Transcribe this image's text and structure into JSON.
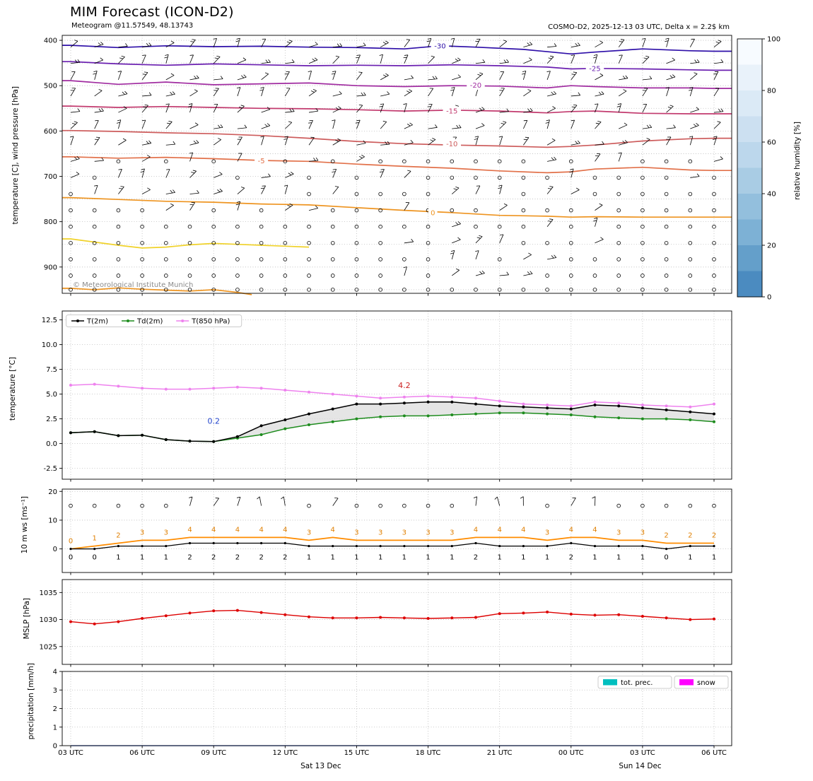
{
  "header": {
    "title": "MIM Forecast (ICON-D2)",
    "subtitle": "Meteogram @11.57549, 48.13743",
    "run_info": "COSMO-D2, 2025-12-13 03 UTC, Delta x = 2.2$ km"
  },
  "copyright": "© Meteorological Institute Munich",
  "time_axis": {
    "hours": [
      "03",
      "04",
      "05",
      "06",
      "07",
      "08",
      "09",
      "10",
      "11",
      "12",
      "13",
      "14",
      "15",
      "16",
      "17",
      "18",
      "19",
      "20",
      "21",
      "22",
      "23",
      "00",
      "01",
      "02",
      "03",
      "04",
      "05",
      "06"
    ],
    "tick_labels": [
      "03 UTC",
      "06 UTC",
      "09 UTC",
      "12 UTC",
      "15 UTC",
      "18 UTC",
      "21 UTC",
      "00 UTC",
      "03 UTC",
      "06 UTC"
    ],
    "date_labels": [
      {
        "text": "Sat 13 Dec",
        "at_index": 10.5
      },
      {
        "text": "Sun 14 Dec",
        "at_index": 23.9
      }
    ]
  },
  "chart_data": [
    {
      "id": "upper_air",
      "type": "heatmap",
      "ylabel": "temperature [C], wind pressure [hPa]",
      "yticks": [
        400,
        500,
        600,
        700,
        800,
        900
      ],
      "ytick_labels": [
        "400",
        "500",
        "600",
        "700",
        "800",
        "900"
      ],
      "ylim": [
        389,
        958
      ],
      "grid": true,
      "colorbar": {
        "label": "relative humidity [%]",
        "ticks": [
          0,
          20,
          40,
          60,
          80,
          100
        ],
        "tick_labels": [
          "0",
          "20",
          "40",
          "60",
          "80",
          "100"
        ],
        "colors_top_to_bottom": [
          "#f7fbff",
          "#e9f2fa",
          "#dbeaf6",
          "#cce0f1",
          "#bcd7ec",
          "#a9cce4",
          "#93bfdd",
          "#7db1d5",
          "#649fca",
          "#4b8bc0"
        ]
      },
      "contours": [
        {
          "level": -30,
          "label": "-30",
          "color": "#2e0fa8",
          "extend": "both",
          "label_at": [
            15.5,
            412
          ],
          "points": [
            [
              0,
              411
            ],
            [
              2,
              416
            ],
            [
              4,
              412
            ],
            [
              6,
              414
            ],
            [
              8,
              413
            ],
            [
              10,
              415
            ],
            [
              12,
              416
            ],
            [
              14,
              419
            ],
            [
              15.5,
              412
            ],
            [
              17,
              415
            ],
            [
              19,
              420
            ],
            [
              21,
              430
            ],
            [
              22,
              426
            ],
            [
              24,
              419
            ],
            [
              26,
              423
            ],
            [
              27,
              424
            ]
          ]
        },
        {
          "level": -25,
          "label": "-25",
          "color": "#6a1fb0",
          "extend": "both",
          "label_at": [
            22,
            462
          ],
          "points": [
            [
              0,
              447
            ],
            [
              2,
              452
            ],
            [
              4,
              455
            ],
            [
              6,
              452
            ],
            [
              8,
              454
            ],
            [
              10,
              456
            ],
            [
              12,
              455
            ],
            [
              14,
              456
            ],
            [
              16,
              454
            ],
            [
              18,
              456
            ],
            [
              20,
              459
            ],
            [
              21,
              463
            ],
            [
              22,
              462
            ],
            [
              24,
              463
            ],
            [
              26,
              465
            ],
            [
              27,
              466
            ]
          ]
        },
        {
          "level": -20,
          "label": "-20",
          "color": "#a02ba0",
          "extend": "both",
          "label_at": [
            17,
            499
          ],
          "points": [
            [
              0,
              489
            ],
            [
              2,
              497
            ],
            [
              4,
              492
            ],
            [
              6,
              498
            ],
            [
              8,
              496
            ],
            [
              10,
              494
            ],
            [
              12,
              500
            ],
            [
              14,
              502
            ],
            [
              16,
              500
            ],
            [
              18,
              501
            ],
            [
              20,
              505
            ],
            [
              21,
              500
            ],
            [
              22,
              502
            ],
            [
              24,
              505
            ],
            [
              26,
              505
            ],
            [
              27,
              506
            ]
          ]
        },
        {
          "level": -15,
          "label": "-15",
          "color": "#c23a6e",
          "extend": "both",
          "label_at": [
            16,
            556
          ],
          "points": [
            [
              0,
              545
            ],
            [
              2,
              548
            ],
            [
              4,
              546
            ],
            [
              6,
              548
            ],
            [
              8,
              550
            ],
            [
              10,
              551
            ],
            [
              12,
              553
            ],
            [
              14,
              556
            ],
            [
              16,
              554
            ],
            [
              18,
              556
            ],
            [
              20,
              560
            ],
            [
              21,
              557
            ],
            [
              22,
              556
            ],
            [
              24,
              561
            ],
            [
              26,
              562
            ],
            [
              27,
              562
            ]
          ]
        },
        {
          "level": -10,
          "label": "-10",
          "color": "#cd5c5c",
          "extend": "both",
          "label_at": [
            16,
            628
          ],
          "points": [
            [
              0,
              599
            ],
            [
              2,
              601
            ],
            [
              4,
              604
            ],
            [
              6,
              606
            ],
            [
              8,
              610
            ],
            [
              10,
              616
            ],
            [
              12,
              623
            ],
            [
              14,
              628
            ],
            [
              16,
              631
            ],
            [
              18,
              633
            ],
            [
              20,
              636
            ],
            [
              21,
              634
            ],
            [
              22,
              631
            ],
            [
              24,
              622
            ],
            [
              26,
              617
            ],
            [
              27,
              616
            ]
          ]
        },
        {
          "level": -5,
          "label": "-5",
          "color": "#e2714a",
          "extend": "both",
          "label_at": [
            8,
            666
          ],
          "points": [
            [
              0,
              657
            ],
            [
              2,
              660
            ],
            [
              4,
              658
            ],
            [
              6,
              661
            ],
            [
              8,
              665
            ],
            [
              10,
              667
            ],
            [
              12,
              673
            ],
            [
              14,
              678
            ],
            [
              16,
              682
            ],
            [
              18,
              688
            ],
            [
              20,
              692
            ],
            [
              21,
              690
            ],
            [
              22,
              684
            ],
            [
              24,
              680
            ],
            [
              26,
              686
            ],
            [
              27,
              687
            ]
          ]
        },
        {
          "level": 0,
          "label": "0",
          "color": "#ee9420",
          "extend": "both",
          "label_at": [
            15.2,
            780
          ],
          "points": [
            [
              0,
              747
            ],
            [
              2,
              751
            ],
            [
              4,
              755
            ],
            [
              6,
              757
            ],
            [
              8,
              761
            ],
            [
              10,
              763
            ],
            [
              12,
              769
            ],
            [
              14,
              775
            ],
            [
              16,
              780
            ],
            [
              18,
              786
            ],
            [
              20,
              788
            ],
            [
              21,
              790
            ],
            [
              22,
              789
            ],
            [
              24,
              790
            ],
            [
              26,
              790
            ],
            [
              27,
              790
            ]
          ]
        },
        {
          "level": 5,
          "label": null,
          "color": "#f0d22a",
          "extend": "left",
          "label_at": null,
          "points": [
            [
              0,
              838
            ],
            [
              1,
              845
            ],
            [
              2,
              852
            ],
            [
              3,
              858
            ],
            [
              4,
              856
            ],
            [
              5,
              851
            ],
            [
              6,
              848
            ],
            [
              7,
              850
            ],
            [
              8,
              852
            ],
            [
              9,
              854
            ],
            [
              10,
              856
            ]
          ]
        },
        {
          "level": 0,
          "label": null,
          "color": "#ee9420",
          "extend": "left",
          "label_at": null,
          "points": [
            [
              0,
              947
            ],
            [
              1,
              950
            ],
            [
              2,
              946
            ],
            [
              3,
              949
            ],
            [
              4,
              951
            ],
            [
              5,
              953
            ],
            [
              6,
              950
            ],
            [
              7,
              956
            ],
            [
              7.6,
              961
            ]
          ]
        }
      ],
      "barb_rows_hpa": [
        415,
        451,
        487,
        523,
        559,
        595,
        631,
        667,
        703,
        739,
        775,
        811,
        847,
        883,
        919,
        950
      ]
    },
    {
      "id": "temperature",
      "type": "line",
      "ylabel": "temperature [°C]",
      "ylim": [
        -3.6,
        13.4
      ],
      "yticks": [
        -2.5,
        0,
        2.5,
        5,
        7.5,
        10,
        12.5
      ],
      "ytick_labels": [
        "-2.5",
        "0.0",
        "2.5",
        "5.0",
        "7.5",
        "10.0",
        "12.5"
      ],
      "legend_position": "upper left",
      "series": [
        {
          "name": "T(2m)",
          "color": "#000000",
          "values": [
            1.1,
            1.2,
            0.8,
            0.85,
            0.4,
            0.25,
            0.2,
            0.7,
            1.8,
            2.4,
            3.0,
            3.5,
            4.0,
            4.0,
            4.1,
            4.2,
            4.2,
            4.0,
            3.8,
            3.7,
            3.6,
            3.5,
            3.9,
            3.8,
            3.6,
            3.4,
            3.2,
            3.0
          ]
        },
        {
          "name": "Td(2m)",
          "color": "#1e8c1e",
          "values": [
            1.1,
            1.2,
            0.8,
            0.85,
            0.4,
            0.25,
            0.2,
            0.55,
            0.9,
            1.5,
            1.9,
            2.2,
            2.5,
            2.7,
            2.8,
            2.8,
            2.9,
            3.0,
            3.1,
            3.1,
            3.0,
            2.9,
            2.7,
            2.6,
            2.5,
            2.5,
            2.4,
            2.2
          ]
        },
        {
          "name": "T(850 hPa)",
          "color": "#ee82ee",
          "values": [
            5.9,
            6.0,
            5.8,
            5.6,
            5.5,
            5.5,
            5.6,
            5.7,
            5.6,
            5.4,
            5.2,
            5.0,
            4.8,
            4.6,
            4.7,
            4.8,
            4.7,
            4.6,
            4.3,
            4.0,
            3.9,
            3.8,
            4.2,
            4.1,
            3.9,
            3.8,
            3.7,
            4.0
          ]
        }
      ],
      "fill_between": {
        "upper": "T(2m)",
        "lower": "Td(2m)",
        "color": "#dcdcdc"
      },
      "annotations": [
        {
          "text": "4.2",
          "color": "#cc2222",
          "x_index": 14,
          "y_value": 5.6
        },
        {
          "text": "0.2",
          "color": "#2244cc",
          "x_index": 6,
          "y_value": 2.0
        }
      ]
    },
    {
      "id": "wind",
      "type": "line",
      "ylabel": "10 m ws [ms⁻¹]",
      "ylim": [
        -8.2,
        20.8
      ],
      "yticks": [
        0,
        10,
        20
      ],
      "ytick_labels": [
        "0",
        "10",
        "20"
      ],
      "barb_row_value": 15,
      "series": [
        {
          "name": "wind-gust",
          "color": "#ff8c00",
          "label_color": "#e07f00",
          "values": [
            0,
            1,
            2,
            3,
            3,
            4,
            4,
            4,
            4,
            4,
            3,
            4,
            3,
            3,
            3,
            3,
            3,
            4,
            4,
            4,
            3,
            4,
            4,
            3,
            3,
            2,
            2,
            2
          ]
        },
        {
          "name": "wind-speed",
          "color": "#000000",
          "label_color": "#000000",
          "values": [
            0,
            0,
            1,
            1,
            1,
            2,
            2,
            2,
            2,
            2,
            1,
            1,
            1,
            1,
            1,
            1,
            1,
            2,
            1,
            1,
            1,
            2,
            1,
            1,
            1,
            0,
            1,
            1
          ]
        }
      ]
    },
    {
      "id": "mslp",
      "type": "line",
      "ylabel": "MSLP [hPa]",
      "ylim": [
        1021.7,
        1037.4
      ],
      "yticks": [
        1025,
        1030,
        1035
      ],
      "ytick_labels": [
        "1025",
        "1030",
        "1035"
      ],
      "series": [
        {
          "name": "MSLP",
          "color": "#dd0000",
          "values": [
            1029.6,
            1029.2,
            1029.6,
            1030.2,
            1030.7,
            1031.2,
            1031.6,
            1031.7,
            1031.3,
            1030.9,
            1030.5,
            1030.3,
            1030.3,
            1030.4,
            1030.3,
            1030.2,
            1030.3,
            1030.4,
            1031.1,
            1031.2,
            1031.4,
            1031.0,
            1030.8,
            1030.9,
            1030.6,
            1030.3,
            1030.0,
            1030.1
          ]
        }
      ]
    },
    {
      "id": "precipitation",
      "type": "line",
      "ylabel": "precipitation [mm/h]",
      "ylim": [
        0,
        4
      ],
      "yticks": [
        0,
        1,
        2,
        3,
        4
      ],
      "ytick_labels": [
        "0",
        "1",
        "2",
        "3",
        "4"
      ],
      "legend": [
        "tot. prec.",
        "snow"
      ],
      "series": [
        {
          "name": "tot. prec.",
          "color": "#00bfbf",
          "values": [
            0,
            0,
            0,
            0,
            0,
            0,
            0,
            0,
            0,
            0,
            0,
            0,
            0,
            0,
            0,
            0,
            0,
            0,
            0,
            0,
            0,
            0,
            0,
            0,
            0,
            0,
            0,
            0
          ]
        },
        {
          "name": "snow",
          "color": "#ff00ff",
          "values": [
            0,
            0,
            0,
            0,
            0,
            0,
            0,
            0,
            0,
            0,
            0,
            0,
            0,
            0,
            0,
            0,
            0,
            0,
            0,
            0,
            0,
            0,
            0,
            0,
            0,
            0,
            0,
            0
          ]
        }
      ]
    }
  ]
}
